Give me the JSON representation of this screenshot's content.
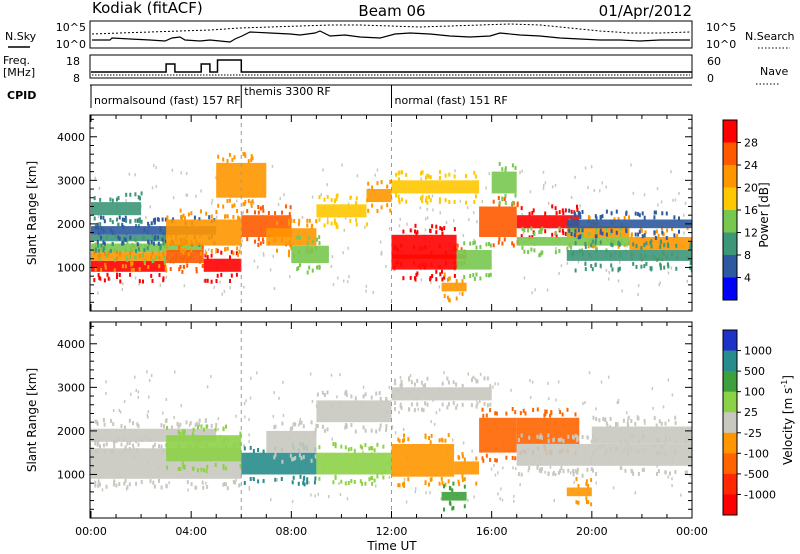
{
  "header": {
    "station": "Kodiak (fitACF)",
    "beam": "Beam 06",
    "date": "01/Apr/2012"
  },
  "sky_panel": {
    "left_label": "N.Sky",
    "right_label": "N.Search",
    "left_ticks": [
      "10^5",
      "10^0"
    ],
    "right_ticks": [
      "10^5",
      "10^0"
    ]
  },
  "freq_panel": {
    "left_label_line1": "Freq.",
    "left_label_line2": "[MHz]",
    "right_label": "Nave",
    "left_ticks": [
      18,
      8
    ],
    "right_ticks": [
      60,
      0
    ],
    "freq_steps": [
      {
        "from": 0.0,
        "to": 3.0,
        "mhz": 10
      },
      {
        "from": 3.0,
        "to": 3.35,
        "mhz": 14
      },
      {
        "from": 3.35,
        "to": 4.4,
        "mhz": 10
      },
      {
        "from": 4.4,
        "to": 4.75,
        "mhz": 14
      },
      {
        "from": 4.75,
        "to": 5.05,
        "mhz": 10
      },
      {
        "from": 5.05,
        "to": 6.0,
        "mhz": 16
      },
      {
        "from": 6.0,
        "to": 24.0,
        "mhz": 10
      }
    ]
  },
  "cpid_panel": {
    "label": "CPID",
    "segments": [
      {
        "start": 0.0,
        "label": "normalsound (fast) 157 RF"
      },
      {
        "start": 6.0,
        "label": "themis 3300 RF"
      },
      {
        "start": 12.0,
        "label": "normal (fast) 151 RF"
      }
    ]
  },
  "power_colorbar": {
    "title": "Power [dB]",
    "ticks": [
      "28",
      "24",
      "20",
      "16",
      "12",
      "8",
      "4"
    ],
    "colors": [
      "#ff0000",
      "#ff5a00",
      "#ff9600",
      "#ffc800",
      "#78c850",
      "#3c9678",
      "#2d5aa0",
      "#0000ff"
    ]
  },
  "velocity_colorbar": {
    "title_main": "Velocity [m s",
    "title_sup": "-1",
    "title_end": "]",
    "ticks": [
      "1000",
      "500",
      "100",
      "25",
      "-25",
      "-100",
      "-500",
      "-1000"
    ],
    "colors": [
      "#1e32c8",
      "#288c8c",
      "#3ca03c",
      "#8cd246",
      "#c8c8c0",
      "#ff9600",
      "#ff6400",
      "#ff2800",
      "#ff0000"
    ]
  },
  "chart_data": [
    {
      "type": "heatmap",
      "name": "power",
      "ylabel": "Slant Range [km]",
      "xlim": [
        0,
        24
      ],
      "ylim": [
        0,
        4500
      ],
      "yticks": [
        1000,
        2000,
        3000,
        4000
      ],
      "scatter_color": "#c8c8c0",
      "bands": [
        {
          "x": [
            0.0,
            3.0
          ],
          "y": [
            900,
            1150
          ],
          "color": "#ff0000"
        },
        {
          "x": [
            0.0,
            3.0
          ],
          "y": [
            1150,
            1350
          ],
          "color": "#ff9600"
        },
        {
          "x": [
            0.0,
            4.5
          ],
          "y": [
            1350,
            1550
          ],
          "color": "#78c850"
        },
        {
          "x": [
            0.0,
            3.0
          ],
          "y": [
            1600,
            1750
          ],
          "color": "#3c9678"
        },
        {
          "x": [
            0.0,
            5.0
          ],
          "y": [
            1750,
            1950
          ],
          "color": "#2d5aa0"
        },
        {
          "x": [
            0.0,
            2.0
          ],
          "y": [
            2200,
            2500
          ],
          "color": "#3c9678"
        },
        {
          "x": [
            3.0,
            4.5
          ],
          "y": [
            1100,
            1400
          ],
          "color": "#ff5a00"
        },
        {
          "x": [
            4.5,
            6.0
          ],
          "y": [
            900,
            1200
          ],
          "color": "#ff0000"
        },
        {
          "x": [
            3.0,
            6.0
          ],
          "y": [
            1500,
            2100
          ],
          "color": "#ff9600"
        },
        {
          "x": [
            5.0,
            7.0
          ],
          "y": [
            2600,
            3400
          ],
          "color": "#ff9600"
        },
        {
          "x": [
            6.0,
            8.0
          ],
          "y": [
            1700,
            2200
          ],
          "color": "#ff5a00"
        },
        {
          "x": [
            7.0,
            9.0
          ],
          "y": [
            1500,
            1900
          ],
          "color": "#ff9600"
        },
        {
          "x": [
            8.0,
            9.5
          ],
          "y": [
            1100,
            1500
          ],
          "color": "#78c850"
        },
        {
          "x": [
            9.0,
            11.0
          ],
          "y": [
            2150,
            2450
          ],
          "color": "#ffc800"
        },
        {
          "x": [
            11.0,
            12.0
          ],
          "y": [
            2500,
            2800
          ],
          "color": "#ff9600"
        },
        {
          "x": [
            12.0,
            15.0
          ],
          "y": [
            1200,
            1300
          ],
          "color": "#ff5a00"
        },
        {
          "x": [
            12.0,
            14.6
          ],
          "y": [
            950,
            1750
          ],
          "color": "#ff0000"
        },
        {
          "x": [
            14.6,
            16.0
          ],
          "y": [
            950,
            1400
          ],
          "color": "#78c850"
        },
        {
          "x": [
            12.0,
            15.5
          ],
          "y": [
            2700,
            3000
          ],
          "color": "#ffc800"
        },
        {
          "x": [
            15.5,
            17.0
          ],
          "y": [
            1700,
            2400
          ],
          "color": "#ff5a00"
        },
        {
          "x": [
            16.0,
            17.0
          ],
          "y": [
            2700,
            3200
          ],
          "color": "#78c850"
        },
        {
          "x": [
            17.0,
            19.5
          ],
          "y": [
            1900,
            2200
          ],
          "color": "#ff0000"
        },
        {
          "x": [
            19.0,
            21.5
          ],
          "y": [
            1700,
            1950
          ],
          "color": "#ff9600"
        },
        {
          "x": [
            17.0,
            21.5
          ],
          "y": [
            1500,
            1700
          ],
          "color": "#78c850"
        },
        {
          "x": [
            21.5,
            24.0
          ],
          "y": [
            1400,
            1700
          ],
          "color": "#ff9600"
        },
        {
          "x": [
            19.0,
            24.0
          ],
          "y": [
            1150,
            1400
          ],
          "color": "#3c9678"
        },
        {
          "x": [
            19.0,
            24.0
          ],
          "y": [
            1900,
            2100
          ],
          "color": "#2d5aa0"
        },
        {
          "x": [
            14.0,
            15.0
          ],
          "y": [
            450,
            650
          ],
          "color": "#ff9600"
        }
      ]
    },
    {
      "type": "heatmap",
      "name": "velocity",
      "ylabel": "Slant Range [km]",
      "xlabel": "Time UT",
      "xlim": [
        0,
        24
      ],
      "ylim": [
        0,
        4500
      ],
      "yticks": [
        1000,
        2000,
        3000,
        4000
      ],
      "xticks": [
        "00:00",
        "04:00",
        "08:00",
        "12:00",
        "16:00",
        "20:00",
        "00:00"
      ],
      "scatter_color": "#c8c8c0",
      "bands": [
        {
          "x": [
            0.0,
            6.0
          ],
          "y": [
            900,
            1600
          ],
          "color": "#c8c8c0"
        },
        {
          "x": [
            0.0,
            5.0
          ],
          "y": [
            1750,
            2050
          ],
          "color": "#c8c8c0"
        },
        {
          "x": [
            3.0,
            6.0
          ],
          "y": [
            1300,
            1900
          ],
          "color": "#8cd246"
        },
        {
          "x": [
            6.0,
            9.0
          ],
          "y": [
            1000,
            1500
          ],
          "color": "#288c8c"
        },
        {
          "x": [
            7.0,
            9.0
          ],
          "y": [
            1500,
            2000
          ],
          "color": "#c8c8c0"
        },
        {
          "x": [
            9.0,
            12.0
          ],
          "y": [
            1000,
            1500
          ],
          "color": "#8cd246"
        },
        {
          "x": [
            9.0,
            12.0
          ],
          "y": [
            2200,
            2700
          ],
          "color": "#c8c8c0"
        },
        {
          "x": [
            12.0,
            14.5
          ],
          "y": [
            950,
            1700
          ],
          "color": "#ff9600"
        },
        {
          "x": [
            14.5,
            15.5
          ],
          "y": [
            1000,
            1300
          ],
          "color": "#ff9600"
        },
        {
          "x": [
            12.0,
            16.0
          ],
          "y": [
            2700,
            3000
          ],
          "color": "#c8c8c0"
        },
        {
          "x": [
            15.5,
            17.0
          ],
          "y": [
            1500,
            2300
          ],
          "color": "#ff6400"
        },
        {
          "x": [
            17.0,
            19.5
          ],
          "y": [
            1700,
            2300
          ],
          "color": "#ff6400"
        },
        {
          "x": [
            17.0,
            24.0
          ],
          "y": [
            1200,
            1700
          ],
          "color": "#c8c8c0"
        },
        {
          "x": [
            20.0,
            24.0
          ],
          "y": [
            1700,
            2100
          ],
          "color": "#c8c8c0"
        },
        {
          "x": [
            14.0,
            15.0
          ],
          "y": [
            400,
            600
          ],
          "color": "#3ca03c"
        },
        {
          "x": [
            19.0,
            20.0
          ],
          "y": [
            500,
            700
          ],
          "color": "#ff9600"
        }
      ]
    }
  ]
}
